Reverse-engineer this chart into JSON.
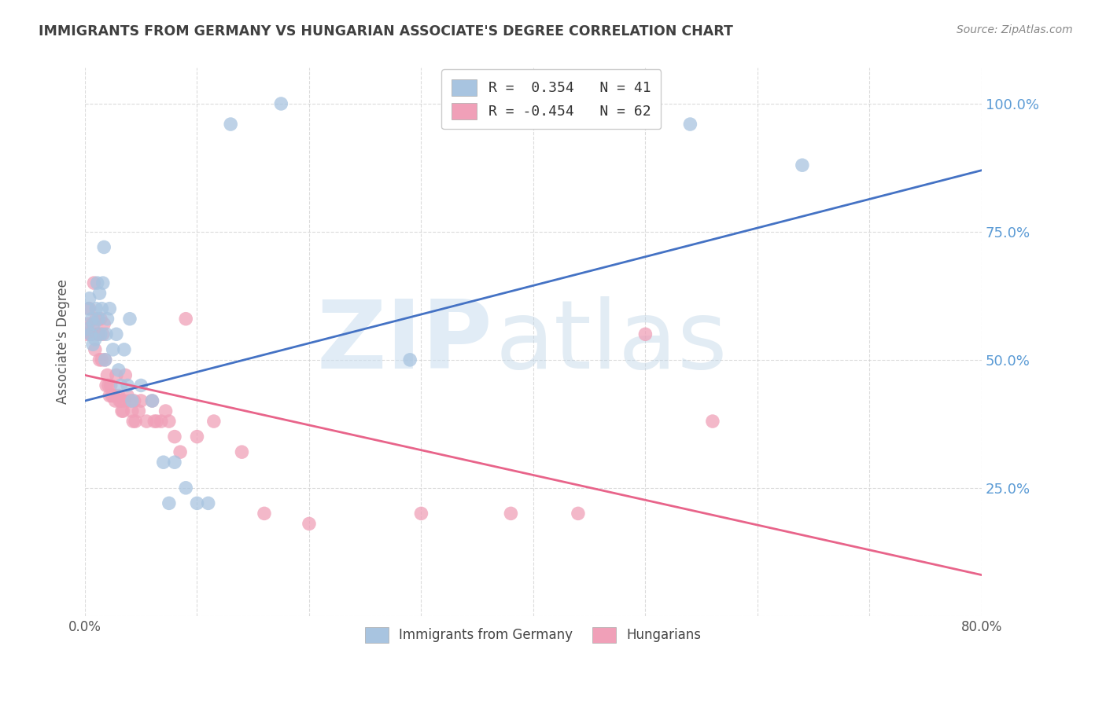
{
  "title": "IMMIGRANTS FROM GERMANY VS HUNGARIAN ASSOCIATE'S DEGREE CORRELATION CHART",
  "source": "Source: ZipAtlas.com",
  "ylabel": "Associate's Degree",
  "right_yticks": [
    "100.0%",
    "75.0%",
    "50.0%",
    "25.0%"
  ],
  "right_ytick_vals": [
    1.0,
    0.75,
    0.5,
    0.25
  ],
  "legend_label1": "R =  0.354   N = 41",
  "legend_label2": "R = -0.454   N = 62",
  "legend_bottom1": "Immigrants from Germany",
  "legend_bottom2": "Hungarians",
  "blue_color": "#a8c4e0",
  "pink_color": "#f0a0b8",
  "blue_line_color": "#4472c4",
  "pink_line_color": "#e8648a",
  "background_color": "#ffffff",
  "grid_color": "#cccccc",
  "title_color": "#404040",
  "right_axis_color": "#5b9bd5",
  "xlim": [
    0.0,
    0.8
  ],
  "ylim": [
    0.0,
    1.07
  ],
  "blue_line_x": [
    0.0,
    0.8
  ],
  "blue_line_y": [
    0.42,
    0.87
  ],
  "pink_line_x": [
    0.0,
    0.8
  ],
  "pink_line_y": [
    0.47,
    0.08
  ],
  "blue_scatter": [
    [
      0.002,
      0.56
    ],
    [
      0.003,
      0.6
    ],
    [
      0.004,
      0.62
    ],
    [
      0.005,
      0.55
    ],
    [
      0.006,
      0.58
    ],
    [
      0.007,
      0.53
    ],
    [
      0.008,
      0.57
    ],
    [
      0.009,
      0.54
    ],
    [
      0.01,
      0.6
    ],
    [
      0.011,
      0.65
    ],
    [
      0.012,
      0.58
    ],
    [
      0.013,
      0.63
    ],
    [
      0.014,
      0.55
    ],
    [
      0.015,
      0.6
    ],
    [
      0.016,
      0.65
    ],
    [
      0.017,
      0.72
    ],
    [
      0.018,
      0.5
    ],
    [
      0.019,
      0.55
    ],
    [
      0.02,
      0.58
    ],
    [
      0.022,
      0.6
    ],
    [
      0.025,
      0.52
    ],
    [
      0.028,
      0.55
    ],
    [
      0.03,
      0.48
    ],
    [
      0.032,
      0.45
    ],
    [
      0.035,
      0.52
    ],
    [
      0.038,
      0.45
    ],
    [
      0.04,
      0.58
    ],
    [
      0.042,
      0.42
    ],
    [
      0.05,
      0.45
    ],
    [
      0.06,
      0.42
    ],
    [
      0.07,
      0.3
    ],
    [
      0.075,
      0.22
    ],
    [
      0.08,
      0.3
    ],
    [
      0.09,
      0.25
    ],
    [
      0.1,
      0.22
    ],
    [
      0.11,
      0.22
    ],
    [
      0.13,
      0.96
    ],
    [
      0.175,
      1.0
    ],
    [
      0.29,
      0.5
    ],
    [
      0.54,
      0.96
    ],
    [
      0.64,
      0.88
    ]
  ],
  "pink_scatter": [
    [
      0.002,
      0.55
    ],
    [
      0.003,
      0.57
    ],
    [
      0.004,
      0.6
    ],
    [
      0.005,
      0.55
    ],
    [
      0.006,
      0.55
    ],
    [
      0.007,
      0.57
    ],
    [
      0.008,
      0.65
    ],
    [
      0.009,
      0.52
    ],
    [
      0.01,
      0.58
    ],
    [
      0.011,
      0.55
    ],
    [
      0.012,
      0.55
    ],
    [
      0.013,
      0.5
    ],
    [
      0.014,
      0.58
    ],
    [
      0.015,
      0.5
    ],
    [
      0.016,
      0.55
    ],
    [
      0.017,
      0.57
    ],
    [
      0.018,
      0.5
    ],
    [
      0.019,
      0.45
    ],
    [
      0.02,
      0.47
    ],
    [
      0.021,
      0.45
    ],
    [
      0.022,
      0.43
    ],
    [
      0.023,
      0.45
    ],
    [
      0.024,
      0.43
    ],
    [
      0.025,
      0.43
    ],
    [
      0.026,
      0.43
    ],
    [
      0.027,
      0.42
    ],
    [
      0.028,
      0.47
    ],
    [
      0.03,
      0.43
    ],
    [
      0.031,
      0.42
    ],
    [
      0.032,
      0.42
    ],
    [
      0.033,
      0.4
    ],
    [
      0.034,
      0.4
    ],
    [
      0.035,
      0.42
    ],
    [
      0.036,
      0.47
    ],
    [
      0.038,
      0.43
    ],
    [
      0.04,
      0.42
    ],
    [
      0.042,
      0.4
    ],
    [
      0.043,
      0.38
    ],
    [
      0.044,
      0.42
    ],
    [
      0.045,
      0.38
    ],
    [
      0.048,
      0.4
    ],
    [
      0.05,
      0.42
    ],
    [
      0.055,
      0.38
    ],
    [
      0.06,
      0.42
    ],
    [
      0.062,
      0.38
    ],
    [
      0.064,
      0.38
    ],
    [
      0.068,
      0.38
    ],
    [
      0.072,
      0.4
    ],
    [
      0.075,
      0.38
    ],
    [
      0.08,
      0.35
    ],
    [
      0.085,
      0.32
    ],
    [
      0.09,
      0.58
    ],
    [
      0.1,
      0.35
    ],
    [
      0.115,
      0.38
    ],
    [
      0.14,
      0.32
    ],
    [
      0.16,
      0.2
    ],
    [
      0.2,
      0.18
    ],
    [
      0.3,
      0.2
    ],
    [
      0.38,
      0.2
    ],
    [
      0.44,
      0.2
    ],
    [
      0.5,
      0.55
    ],
    [
      0.56,
      0.38
    ]
  ]
}
